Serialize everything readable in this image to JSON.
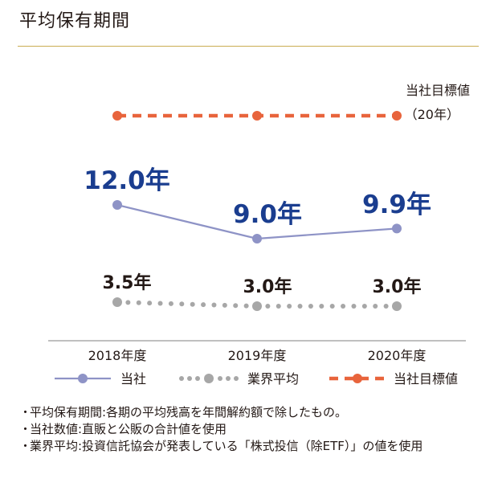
{
  "header": {
    "title": "平均保有期間"
  },
  "chart_data": {
    "type": "line",
    "categories": [
      "2018年度",
      "2019年度",
      "2020年度"
    ],
    "series": [
      {
        "name": "当社",
        "values": [
          12.0,
          9.0,
          9.9
        ],
        "labels": [
          "12.0年",
          "9.0年",
          "9.9年"
        ],
        "color": "#8e93c6",
        "label_color": "#1a3d8f",
        "style": "solid"
      },
      {
        "name": "業界平均",
        "values": [
          3.5,
          3.0,
          3.0
        ],
        "labels": [
          "3.5年",
          "3.0年",
          "3.0年"
        ],
        "color": "#a7a7a7",
        "label_color": "#231815",
        "style": "dotted"
      },
      {
        "name": "当社目標値",
        "values": [
          20,
          20,
          20
        ],
        "color": "#e8643c",
        "style": "dashed"
      }
    ],
    "target_annotation": {
      "line1": "当社目標値",
      "line2": "（20年）"
    },
    "legend_position": "bottom"
  },
  "notes": [
    "平均保有期間:各期の平均残高を年間解約額で除したもの。",
    "当社数値:直販と公販の合計値を使用",
    "業界平均:投資信託協会が発表している「株式投信（除ETF）」の値を使用"
  ],
  "note_bullet": "・"
}
